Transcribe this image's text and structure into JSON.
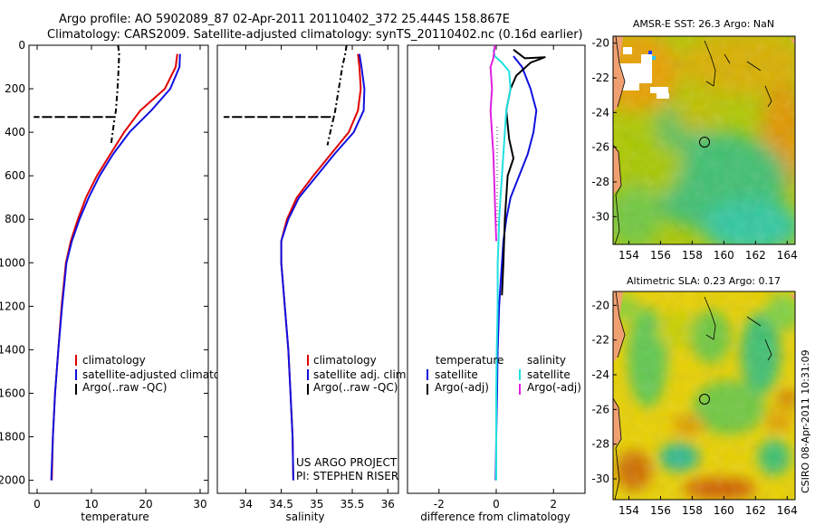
{
  "header": {
    "line1": "Argo profile: AO 5902089_87 02-Apr-2011 20110402_372 25.444S 158.867E",
    "line2": "Climatology: CARS2009. Satellite-adjusted climatology: synTS_20110402.nc (0.16d earlier)"
  },
  "side_text": "CSIRO 08-Apr-2011 10:31:09",
  "colors": {
    "climatology": "#e00000",
    "satellite": "#1010e0",
    "argo": "#000000",
    "salinity_satellite": "#20e0e0",
    "salinity_argo": "#e020e0"
  },
  "chart_data": [
    {
      "type": "line",
      "id": "temperature",
      "xlabel": "temperature",
      "xlim": [
        -1.5,
        31.5
      ],
      "ylim": [
        0,
        2060
      ],
      "y_reversed": true,
      "xticks": [
        "0",
        "10",
        "20",
        "30"
      ],
      "yticks": [
        "0",
        "200",
        "400",
        "600",
        "800",
        "1000",
        "1200",
        "1400",
        "1600",
        "1800",
        "2000"
      ],
      "series": [
        {
          "name": "climatology",
          "color_key": "climatology",
          "points": [
            [
              25.8,
              40
            ],
            [
              25.5,
              100
            ],
            [
              23.5,
              200
            ],
            [
              19,
              300
            ],
            [
              16,
              400
            ],
            [
              13.5,
              500
            ],
            [
              11,
              600
            ],
            [
              9,
              700
            ],
            [
              7.5,
              800
            ],
            [
              6.2,
              900
            ],
            [
              5.3,
              1000
            ],
            [
              4.5,
              1200
            ],
            [
              3.9,
              1400
            ],
            [
              3.3,
              1600
            ],
            [
              2.9,
              1800
            ],
            [
              2.7,
              2000
            ]
          ]
        },
        {
          "name": "satellite-adjusted climatology",
          "color_key": "satellite",
          "points": [
            [
              26.3,
              40
            ],
            [
              26.2,
              100
            ],
            [
              24.5,
              200
            ],
            [
              21,
              300
            ],
            [
              17,
              400
            ],
            [
              14,
              500
            ],
            [
              11.5,
              600
            ],
            [
              9.5,
              700
            ],
            [
              7.8,
              800
            ],
            [
              6.4,
              900
            ],
            [
              5.4,
              1000
            ],
            [
              4.6,
              1200
            ],
            [
              3.9,
              1400
            ],
            [
              3.3,
              1600
            ],
            [
              2.9,
              1800
            ],
            [
              2.6,
              2000
            ]
          ]
        },
        {
          "name": "Argo(..raw -QC)",
          "color_key": "argo",
          "dash": "6,3,2,3",
          "points": [
            [
              14.9,
              0
            ],
            [
              15.1,
              40
            ],
            [
              15,
              100
            ],
            [
              14.8,
              200
            ],
            [
              14.5,
              300
            ],
            [
              14.3,
              330
            ],
            [
              -0.5,
              330
            ],
            [
              14.3,
              330
            ],
            [
              13.9,
              400
            ],
            [
              13.6,
              460
            ]
          ]
        }
      ],
      "legend": {
        "placement": "lower-right",
        "entries": [
          "climatology",
          "satellite-adjusted climatology",
          "Argo(..raw -QC)"
        ]
      }
    },
    {
      "type": "line",
      "id": "salinity",
      "xlabel": "salinity",
      "xlim": [
        33.6,
        36.15
      ],
      "ylim": [
        0,
        2060
      ],
      "y_reversed": true,
      "xticks": [
        "34",
        "34.5",
        "35",
        "35.5",
        "36"
      ],
      "series": [
        {
          "name": "climatology",
          "color_key": "climatology",
          "points": [
            [
              35.58,
              40
            ],
            [
              35.6,
              100
            ],
            [
              35.62,
              200
            ],
            [
              35.58,
              300
            ],
            [
              35.45,
              400
            ],
            [
              35.2,
              500
            ],
            [
              34.95,
              600
            ],
            [
              34.72,
              700
            ],
            [
              34.58,
              800
            ],
            [
              34.5,
              900
            ],
            [
              34.5,
              1000
            ],
            [
              34.55,
              1200
            ],
            [
              34.6,
              1400
            ],
            [
              34.63,
              1600
            ],
            [
              34.66,
              1800
            ],
            [
              34.67,
              2000
            ]
          ]
        },
        {
          "name": "satellite adj. clim.",
          "color_key": "satellite",
          "points": [
            [
              35.6,
              40
            ],
            [
              35.63,
              100
            ],
            [
              35.67,
              200
            ],
            [
              35.66,
              300
            ],
            [
              35.52,
              400
            ],
            [
              35.25,
              500
            ],
            [
              35,
              600
            ],
            [
              34.75,
              700
            ],
            [
              34.6,
              800
            ],
            [
              34.5,
              900
            ],
            [
              34.5,
              1000
            ],
            [
              34.55,
              1200
            ],
            [
              34.6,
              1400
            ],
            [
              34.63,
              1600
            ],
            [
              34.66,
              1800
            ],
            [
              34.67,
              2000
            ]
          ]
        },
        {
          "name": "Argo(..raw -QC)",
          "color_key": "argo",
          "dash": "6,3,2,3",
          "points": [
            [
              35.42,
              0
            ],
            [
              35.4,
              40
            ],
            [
              35.36,
              100
            ],
            [
              35.31,
              200
            ],
            [
              35.26,
              300
            ],
            [
              35.24,
              330
            ],
            [
              33.7,
              330
            ],
            [
              35.24,
              330
            ],
            [
              35.19,
              400
            ],
            [
              35.15,
              460
            ]
          ]
        }
      ],
      "legend": {
        "placement": "lower-right",
        "entries": [
          "climatology",
          "satellite adj. clim.",
          "Argo(..raw -QC)"
        ]
      },
      "annotation": [
        "US ARGO PROJECT",
        "PI: STEPHEN RISER"
      ]
    },
    {
      "type": "line",
      "id": "difference",
      "xlabel": "difference from climatology",
      "xlim": [
        -3.1,
        3.1
      ],
      "ylim": [
        0,
        2060
      ],
      "y_reversed": true,
      "xticks": [
        "-2",
        "0",
        "2"
      ],
      "series": [
        {
          "name": "temperature satellite",
          "color_key": "satellite",
          "points": [
            [
              0.6,
              50
            ],
            [
              0.9,
              100
            ],
            [
              1.2,
              200
            ],
            [
              1.4,
              300
            ],
            [
              1.3,
              400
            ],
            [
              1.1,
              500
            ],
            [
              0.8,
              600
            ],
            [
              0.5,
              700
            ],
            [
              0.35,
              800
            ],
            [
              0.25,
              900
            ],
            [
              0.2,
              1000
            ],
            [
              0.15,
              1100
            ],
            [
              0.1,
              1200
            ],
            [
              0.05,
              1400
            ],
            [
              0.03,
              1600
            ],
            [
              0,
              1800
            ],
            [
              -0.02,
              2000
            ]
          ]
        },
        {
          "name": "temperature Argo(-adj)",
          "color_key": "argo",
          "points": [
            [
              0.6,
              20
            ],
            [
              1,
              60
            ],
            [
              1.7,
              55
            ],
            [
              1.2,
              80
            ],
            [
              0.7,
              140
            ],
            [
              0.5,
              200
            ],
            [
              0.35,
              300
            ],
            [
              0.45,
              430
            ],
            [
              0.6,
              520
            ],
            [
              0.4,
              600
            ],
            [
              0.3,
              800
            ],
            [
              0.25,
              1000
            ],
            [
              0.2,
              1150
            ]
          ]
        },
        {
          "name": "salinity satellite",
          "color_key": "salinity_satellite",
          "points": [
            [
              -0.1,
              20
            ],
            [
              -0.05,
              50
            ],
            [
              0.2,
              80
            ],
            [
              0.45,
              120
            ],
            [
              0.5,
              200
            ],
            [
              0.35,
              300
            ],
            [
              0.3,
              400
            ],
            [
              0.25,
              500
            ],
            [
              0.2,
              600
            ],
            [
              0.15,
              700
            ],
            [
              0.1,
              800
            ],
            [
              0.08,
              900
            ],
            [
              0.05,
              1000
            ],
            [
              0.05,
              1200
            ],
            [
              0.02,
              1400
            ],
            [
              0,
              1600
            ],
            [
              0,
              2000
            ]
          ]
        },
        {
          "name": "salinity Argo(-adj)",
          "color_key": "salinity_argo",
          "points": [
            [
              -0.05,
              0
            ],
            [
              -0.1,
              60
            ],
            [
              -0.2,
              100
            ],
            [
              -0.15,
              200
            ],
            [
              -0.2,
              300
            ],
            [
              -0.1,
              500
            ],
            [
              -0.05,
              700
            ],
            [
              0,
              900
            ]
          ]
        }
      ],
      "legend_groups": [
        {
          "header": "temperature",
          "entries": [
            {
              "label": "satellite",
              "color_key": "satellite"
            },
            {
              "label": "Argo(-adj)",
              "color_key": "argo"
            }
          ]
        },
        {
          "header": "salinity",
          "entries": [
            {
              "label": "satellite",
              "color_key": "salinity_satellite"
            },
            {
              "label": "Argo(-adj)",
              "color_key": "salinity_argo"
            }
          ]
        }
      ]
    },
    {
      "type": "heatmap",
      "id": "sst-map",
      "title": "AMSR-E SST: 26.3 Argo: NaN",
      "xlim": [
        153,
        164.5
      ],
      "ylim": [
        -31.6,
        -19.6
      ],
      "xticks": [
        "154",
        "156",
        "158",
        "160",
        "162",
        "164"
      ],
      "yticks": [
        "-20",
        "-22",
        "-24",
        "-26",
        "-28",
        "-30"
      ],
      "float_position": [
        158.867,
        -25.444
      ]
    },
    {
      "type": "heatmap",
      "id": "sla-map",
      "title": "Altimetric SLA: 0.23 Argo: 0.17",
      "xlim": [
        153,
        164.5
      ],
      "ylim": [
        -31.2,
        -19.2
      ],
      "xticks": [
        "154",
        "156",
        "158",
        "160",
        "162",
        "164"
      ],
      "yticks": [
        "-20",
        "-22",
        "-24",
        "-26",
        "-28",
        "-30"
      ],
      "float_position": [
        158.867,
        -25.444
      ]
    }
  ]
}
